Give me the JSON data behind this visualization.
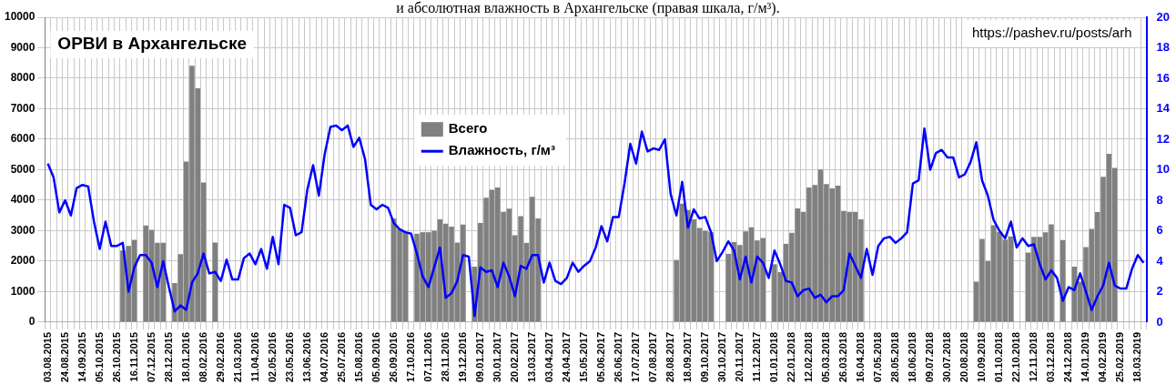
{
  "chart_data": {
    "type": "bar",
    "title": "ОРВИ в Архангельске",
    "subtitle": "и абсолютная влажность в Архангельске (правая шкала, г/м³).",
    "annotations": [
      "https://pashev.ru/posts/arh"
    ],
    "categories": [
      "03.08.2015",
      null,
      null,
      "24.08.2015",
      null,
      null,
      "14.09.2015",
      null,
      null,
      "05.10.2015",
      null,
      null,
      "26.10.2015",
      null,
      null,
      "16.11.2015",
      null,
      null,
      "07.12.2015",
      null,
      null,
      "28.12.2015",
      null,
      null,
      "18.01.2016",
      null,
      null,
      "08.02.2016",
      null,
      null,
      "29.02.2016",
      null,
      null,
      "21.03.2016",
      null,
      null,
      "11.04.2016",
      null,
      null,
      "02.05.2016",
      null,
      null,
      "23.05.2016",
      null,
      null,
      "13.06.2016",
      null,
      null,
      "04.07.2016",
      null,
      null,
      "25.07.2016",
      null,
      null,
      "15.08.2016",
      null,
      null,
      "05.09.2016",
      null,
      null,
      "26.09.2016",
      null,
      null,
      "17.10.2016",
      null,
      null,
      "07.11.2016",
      null,
      null,
      "28.11.2016",
      null,
      null,
      "19.12.2016",
      null,
      null,
      "09.01.2017",
      null,
      null,
      "30.01.2017",
      null,
      null,
      "20.02.2017",
      null,
      null,
      "13.03.2017",
      null,
      null,
      "03.04.2017",
      null,
      null,
      "24.04.2017",
      null,
      null,
      "15.05.2017",
      null,
      null,
      "05.06.2017",
      null,
      null,
      "26.06.2017",
      null,
      null,
      "17.07.2017",
      null,
      null,
      "07.08.2017",
      null,
      null,
      "28.08.2017",
      null,
      null,
      "18.09.2017",
      null,
      null,
      "09.10.2017",
      null,
      null,
      "30.10.2017",
      null,
      null,
      "20.11.2017",
      null,
      null,
      "11.12.2017",
      null,
      null,
      "01.01.2018",
      null,
      null,
      "22.01.2018",
      null,
      null,
      "12.02.2018",
      null,
      null,
      "05.03.2018",
      null,
      null,
      "26.03.2018",
      null,
      null,
      "16.04.2018",
      null,
      null,
      "07.05.2018",
      null,
      null,
      "28.05.2018",
      null,
      null,
      "18.06.2018",
      null,
      null,
      "09.07.2018",
      null,
      null,
      "30.07.2018",
      null,
      null,
      "20.08.2018",
      null,
      null,
      "10.09.2018",
      null,
      null,
      "01.10.2018",
      null,
      null,
      "22.10.2018",
      null,
      null,
      "12.11.2018",
      null,
      null,
      "03.12.2018",
      null,
      null,
      "24.12.2018",
      null,
      null,
      "14.01.2019",
      null,
      null,
      "04.02.2019",
      null,
      null,
      "25.02.2019",
      null,
      null,
      "18.03.2019",
      null
    ],
    "series": [
      {
        "name": "Всего",
        "type": "bar",
        "color": "#808080",
        "values": [
          null,
          null,
          null,
          null,
          null,
          null,
          null,
          null,
          null,
          null,
          null,
          null,
          null,
          2350,
          2500,
          2700,
          null,
          3170,
          3030,
          2600,
          2600,
          null,
          1280,
          2230,
          5270,
          8410,
          7670,
          4580,
          null,
          2610,
          null,
          null,
          null,
          null,
          null,
          null,
          null,
          null,
          null,
          null,
          null,
          null,
          null,
          null,
          null,
          null,
          null,
          null,
          null,
          null,
          null,
          null,
          null,
          null,
          null,
          null,
          null,
          null,
          null,
          null,
          3400,
          3050,
          2950,
          null,
          2900,
          2950,
          2950,
          3000,
          3370,
          3230,
          3130,
          2610,
          3200,
          null,
          1820,
          3250,
          4080,
          4340,
          4420,
          3620,
          3720,
          2850,
          3480,
          2600,
          4110,
          3400,
          null,
          null,
          null,
          null,
          null,
          null,
          null,
          null,
          null,
          null,
          null,
          null,
          null,
          null,
          null,
          null,
          null,
          null,
          null,
          null,
          null,
          null,
          null,
          2040,
          3890,
          3680,
          3370,
          3090,
          3000,
          2950,
          null,
          null,
          2240,
          2630,
          2530,
          2980,
          3110,
          2680,
          2760,
          null,
          1900,
          1640,
          2570,
          2930,
          3730,
          3620,
          4420,
          4500,
          5010,
          4530,
          4390,
          4480,
          3650,
          3620,
          3620,
          3370,
          null,
          null,
          null,
          null,
          null,
          null,
          null,
          null,
          null,
          null,
          null,
          null,
          null,
          null,
          null,
          null,
          null,
          null,
          null,
          1330,
          2730,
          2000,
          3180,
          2960,
          2710,
          2810,
          null,
          null,
          2280,
          2800,
          2800,
          2950,
          3210,
          null,
          2690,
          null,
          1820,
          1330,
          2460,
          3060,
          3610,
          4770,
          5520,
          5060,
          null,
          null,
          null,
          null,
          null
        ]
      },
      {
        "name": "Влажность, г/м³",
        "type": "line",
        "axis": "y2",
        "color": "#0000ff",
        "values": [
          10.4,
          9.5,
          7.2,
          8.0,
          7.0,
          8.8,
          9.0,
          8.9,
          6.6,
          4.8,
          6.6,
          5.0,
          5.0,
          5.2,
          2.0,
          3.6,
          4.4,
          4.4,
          3.9,
          2.3,
          4.0,
          2.3,
          0.7,
          1.1,
          0.8,
          2.6,
          3.2,
          4.5,
          3.2,
          3.3,
          2.7,
          4.1,
          2.8,
          2.8,
          4.2,
          4.5,
          3.8,
          4.8,
          3.5,
          5.6,
          3.8,
          7.7,
          7.5,
          5.7,
          5.9,
          8.7,
          10.3,
          8.3,
          11.0,
          12.8,
          12.9,
          12.6,
          12.9,
          11.5,
          12.1,
          10.7,
          7.7,
          7.4,
          7.7,
          7.5,
          6.5,
          6.1,
          5.9,
          5.8,
          4.5,
          3.0,
          2.3,
          3.6,
          4.9,
          1.6,
          1.9,
          2.7,
          4.4,
          4.3,
          0.4,
          3.6,
          3.3,
          3.4,
          2.3,
          3.9,
          3.0,
          1.7,
          3.7,
          3.5,
          4.4,
          4.4,
          2.6,
          3.9,
          2.7,
          2.5,
          2.9,
          3.9,
          3.3,
          3.7,
          4.0,
          4.9,
          6.3,
          5.3,
          6.9,
          6.9,
          9.1,
          11.7,
          10.4,
          12.5,
          11.2,
          11.4,
          11.3,
          12.0,
          8.4,
          7.0,
          9.2,
          6.2,
          7.4,
          6.8,
          6.9,
          5.9,
          4.0,
          4.6,
          5.3,
          4.7,
          2.8,
          4.3,
          2.6,
          4.3,
          3.9,
          2.9,
          4.7,
          3.8,
          2.7,
          2.6,
          1.7,
          2.1,
          2.2,
          1.6,
          1.8,
          1.3,
          1.7,
          1.7,
          2.1,
          4.5,
          3.7,
          2.9,
          4.8,
          3.1,
          5.0,
          5.5,
          5.6,
          5.2,
          5.5,
          5.9,
          9.1,
          9.3,
          12.7,
          10.0,
          11.1,
          11.3,
          10.8,
          10.8,
          9.5,
          9.7,
          10.5,
          11.8,
          9.3,
          8.3,
          6.7,
          6.0,
          5.5,
          6.6,
          4.9,
          5.5,
          5.0,
          5.1,
          3.8,
          2.8,
          3.4,
          2.9,
          1.4,
          2.3,
          2.1,
          3.2,
          2.0,
          0.8,
          1.7,
          2.4,
          3.9,
          2.4,
          2.2,
          2.2,
          3.5,
          4.4,
          3.9
        ]
      }
    ],
    "ylim": [
      0,
      10000
    ],
    "yticks": [
      0,
      1000,
      2000,
      3000,
      4000,
      5000,
      6000,
      7000,
      8000,
      9000,
      10000
    ],
    "y2lim": [
      0,
      20
    ],
    "y2ticks": [
      0,
      2,
      4,
      6,
      8,
      10,
      12,
      14,
      16,
      18,
      20
    ],
    "grid": true,
    "legend": "top"
  }
}
